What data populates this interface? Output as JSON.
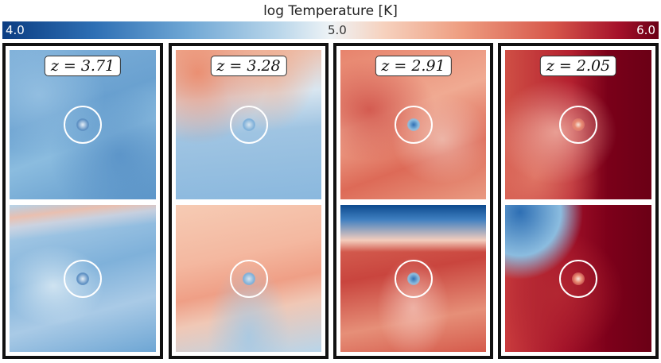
{
  "colorbar": {
    "title": "log Temperature [K]",
    "tick_labels": [
      "4.0",
      "5.0",
      "6.0"
    ],
    "range": [
      4.0,
      6.0
    ],
    "colormap": "blue-white-red",
    "colors": {
      "low": "#0b3d82",
      "mid": "#eef3f6",
      "high": "#6b0016"
    }
  },
  "panels": [
    {
      "redshift_label": "z = 3.71",
      "dominant_color": "#7fb0d9"
    },
    {
      "redshift_label": "z = 3.28",
      "dominant_color": "#f1b9a0"
    },
    {
      "redshift_label": "z = 2.91",
      "dominant_color": "#e07a64"
    },
    {
      "redshift_label": "z = 2.05",
      "dominant_color": "#a31229"
    }
  ]
}
